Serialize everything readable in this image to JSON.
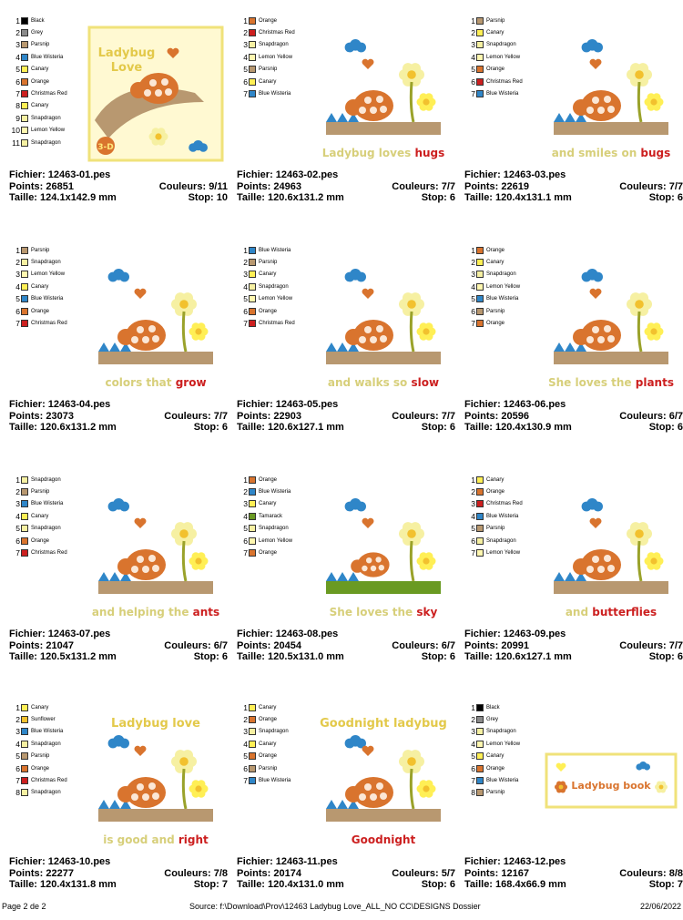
{
  "colors": {
    "Black": "#000000",
    "Grey": "#8a8a8a",
    "Parsnip": "#b89870",
    "Blue Wisteria": "#2f86c8",
    "Canary": "#ffef55",
    "Orange": "#d9742e",
    "Christmas Red": "#cc1f1f",
    "Snapdragon": "#f6f0a2",
    "Lemon Yellow": "#fff7b0",
    "Sunflower": "#f2c12e",
    "Tamarack": "#6a9a22"
  },
  "labels": {
    "file": "Fichier:",
    "points": "Points:",
    "colors": "Couleurs:",
    "size": "Taille:",
    "stop": "Stop:"
  },
  "designs": [
    {
      "file": "12463-01.pes",
      "points": "26851",
      "colors": "9/11",
      "size": "124.1x142.9 mm",
      "stop": "10",
      "legend": [
        "Black",
        "Grey",
        "Parsnip",
        "Blue Wisteria",
        "Canary",
        "Orange",
        "Christmas Red",
        "Canary",
        "Snapdragon",
        "Lemon Yellow",
        "Snapdragon"
      ],
      "text1": "Ladybug",
      "text2": "Love",
      "badge": "3-D"
    },
    {
      "file": "12463-02.pes",
      "points": "24963",
      "colors": "7/7",
      "size": "120.6x131.2 mm",
      "stop": "6",
      "legend": [
        "Orange",
        "Christmas Red",
        "Snapdragon",
        "Lemon Yellow",
        "Parsnip",
        "Canary",
        "Blue Wisteria"
      ],
      "caption_a": "Ladybug loves ",
      "caption_b": "hugs"
    },
    {
      "file": "12463-03.pes",
      "points": "22619",
      "colors": "7/7",
      "size": "120.4x131.1 mm",
      "stop": "6",
      "legend": [
        "Parsnip",
        "Canary",
        "Snapdragon",
        "Lemon Yellow",
        "Orange",
        "Christmas Red",
        "Blue Wisteria"
      ],
      "caption_a": "and smiles on ",
      "caption_b": "bugs"
    },
    {
      "file": "12463-04.pes",
      "points": "23073",
      "colors": "7/7",
      "size": "120.6x131.2 mm",
      "stop": "6",
      "legend": [
        "Parsnip",
        "Snapdragon",
        "Lemon Yellow",
        "Canary",
        "Blue Wisteria",
        "Orange",
        "Christmas Red"
      ],
      "caption_a": "colors that ",
      "caption_b": "grow"
    },
    {
      "file": "12463-05.pes",
      "points": "22903",
      "colors": "7/7",
      "size": "120.6x127.1 mm",
      "stop": "6",
      "legend": [
        "Blue Wisteria",
        "Parsnip",
        "Canary",
        "Snapdragon",
        "Lemon Yellow",
        "Orange",
        "Christmas Red"
      ],
      "caption_a": "and walks so ",
      "caption_b": "slow"
    },
    {
      "file": "12463-06.pes",
      "points": "20596",
      "colors": "6/7",
      "size": "120.4x130.9 mm",
      "stop": "6",
      "legend": [
        "Orange",
        "Canary",
        "Snapdragon",
        "Lemon Yellow",
        "Blue Wisteria",
        "Parsnip",
        "Orange"
      ],
      "caption_a": "She loves the ",
      "caption_b": "plants"
    },
    {
      "file": "12463-07.pes",
      "points": "21047",
      "colors": "6/7",
      "size": "120.5x131.2 mm",
      "stop": "6",
      "legend": [
        "Snapdragon",
        "Parsnip",
        "Blue Wisteria",
        "Canary",
        "Snapdragon",
        "Orange",
        "Christmas Red"
      ],
      "caption_a": "and helping the ",
      "caption_b": "ants"
    },
    {
      "file": "12463-08.pes",
      "points": "20454",
      "colors": "6/7",
      "size": "120.5x131.0 mm",
      "stop": "6",
      "legend": [
        "Orange",
        "Blue Wisteria",
        "Canary",
        "Tamarack",
        "Snapdragon",
        "Lemon Yellow",
        "Orange"
      ],
      "caption_a": "She loves the ",
      "caption_b": "sky"
    },
    {
      "file": "12463-09.pes",
      "points": "20991",
      "colors": "7/7",
      "size": "120.6x127.1 mm",
      "stop": "6",
      "legend": [
        "Canary",
        "Orange",
        "Christmas Red",
        "Blue Wisteria",
        "Parsnip",
        "Snapdragon",
        "Lemon Yellow"
      ],
      "caption_a": "and ",
      "caption_b": "butterflies"
    },
    {
      "file": "12463-10.pes",
      "points": "22277",
      "colors": "7/8",
      "size": "120.4x131.8 mm",
      "stop": "7",
      "legend": [
        "Canary",
        "Sunflower",
        "Blue Wisteria",
        "Snapdragon",
        "Parsnip",
        "Orange",
        "Christmas Red",
        "Snapdragon"
      ],
      "text1": "Ladybug love",
      "caption_a": "is good and ",
      "caption_b": "right"
    },
    {
      "file": "12463-11.pes",
      "points": "20174",
      "colors": "5/7",
      "size": "120.4x131.0 mm",
      "stop": "6",
      "legend": [
        "Canary",
        "Orange",
        "Snapdragon",
        "Canary",
        "Orange",
        "Parsnip",
        "Blue Wisteria"
      ],
      "text1": "Goodnight ladybug",
      "caption_a": "",
      "caption_b": "Goodnight"
    },
    {
      "file": "12463-12.pes",
      "points": "12167",
      "colors": "8/8",
      "size": "168.4x66.9 mm",
      "stop": "7",
      "legend": [
        "Black",
        "Grey",
        "Snapdragon",
        "Lemon Yellow",
        "Canary",
        "Orange",
        "Blue Wisteria",
        "Parsnip"
      ],
      "text1": "Ladybug book"
    }
  ],
  "footer": {
    "page": "Page 2 de 2",
    "source": "Source: f:\\Download\\Prov\\12463 Ladybug Love_ALL_NO CC\\DESIGNS Dossier",
    "date": "22/06/2022"
  }
}
